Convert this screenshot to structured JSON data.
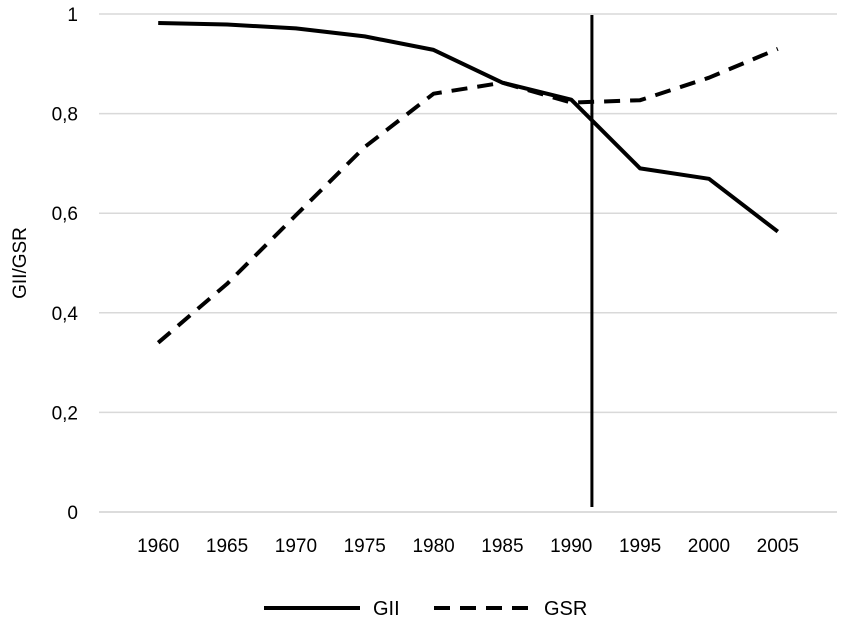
{
  "chart_data": {
    "type": "line",
    "x": [
      "1960",
      "1965",
      "1970",
      "1975",
      "1980",
      "1985",
      "1990",
      "1995",
      "2000",
      "2005"
    ],
    "series": [
      {
        "name": "GII",
        "style": "solid",
        "color": "#000000",
        "points": [
          [
            1960,
            0.982
          ],
          [
            1965,
            0.979
          ],
          [
            1970,
            0.971
          ],
          [
            1975,
            0.955
          ],
          [
            1980,
            0.928
          ],
          [
            1985,
            0.862
          ],
          [
            1990,
            0.828
          ],
          [
            1995,
            0.69
          ],
          [
            2000,
            0.669
          ],
          [
            2005,
            0.563
          ]
        ]
      },
      {
        "name": "GSR",
        "style": "dashed",
        "color": "#000000",
        "points": [
          [
            1960,
            0.34
          ],
          [
            1965,
            0.458
          ],
          [
            1970,
            0.596
          ],
          [
            1975,
            0.733
          ],
          [
            1980,
            0.84
          ],
          [
            1985,
            0.862
          ],
          [
            1990,
            0.822
          ],
          [
            1995,
            0.827
          ],
          [
            2000,
            0.872
          ],
          [
            2005,
            0.93
          ]
        ]
      }
    ],
    "vertical_marker": {
      "x": 1991.5,
      "color": "#000000"
    },
    "ylabel": "GII/GSR",
    "xlabel": "",
    "ylim": [
      0,
      1
    ],
    "xlim": [
      1955.7,
      2009.3
    ],
    "yticks": [
      0,
      0.2,
      0.4,
      0.6,
      0.8,
      1
    ],
    "ytick_labels": [
      "0",
      "0,2",
      "0,4",
      "0,6",
      "0,8",
      "1"
    ],
    "grid": "horizontal",
    "legend": {
      "placement": "bottom",
      "entries": [
        "GII",
        "GSR"
      ]
    }
  }
}
